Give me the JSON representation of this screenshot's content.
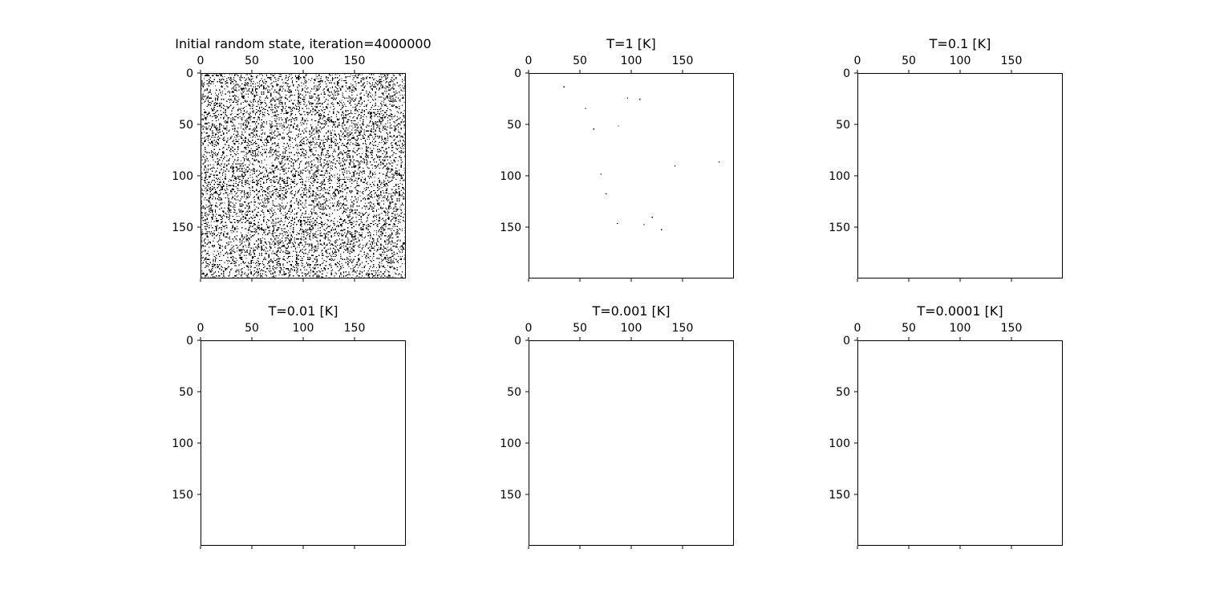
{
  "chart_data": [
    {
      "type": "heatmap",
      "title": "Initial random state, iteration=4000000",
      "xticks": [
        0,
        50,
        100,
        150
      ],
      "yticks": [
        0,
        50,
        100,
        150
      ],
      "grid_size": [
        200,
        200
      ],
      "xlim": [
        0,
        200
      ],
      "ylim": [
        0,
        200
      ],
      "colormap": [
        "#ffffff",
        "#000000"
      ],
      "grid": false,
      "random_fill_fraction": 0.18,
      "points": []
    },
    {
      "type": "heatmap",
      "title": "T=1 [K]",
      "xticks": [
        0,
        50,
        100,
        150
      ],
      "yticks": [
        0,
        50,
        100,
        150
      ],
      "grid_size": [
        200,
        200
      ],
      "xlim": [
        0,
        200
      ],
      "ylim": [
        0,
        200
      ],
      "colormap": [
        "#ffffff",
        "#000000"
      ],
      "grid": false,
      "random_fill_fraction": 0,
      "points": [
        [
          34,
          13
        ],
        [
          96,
          24
        ],
        [
          108,
          25
        ],
        [
          55,
          34
        ],
        [
          63,
          54
        ],
        [
          87,
          51
        ],
        [
          185,
          86
        ],
        [
          142,
          90
        ],
        [
          70,
          98
        ],
        [
          75,
          117
        ],
        [
          120,
          140
        ],
        [
          86,
          146
        ],
        [
          112,
          147
        ],
        [
          129,
          152
        ]
      ]
    },
    {
      "type": "heatmap",
      "title": "T=0.1 [K]",
      "xticks": [
        0,
        50,
        100,
        150
      ],
      "yticks": [
        0,
        50,
        100,
        150
      ],
      "grid_size": [
        200,
        200
      ],
      "xlim": [
        0,
        200
      ],
      "ylim": [
        0,
        200
      ],
      "colormap": [
        "#ffffff",
        "#000000"
      ],
      "grid": false,
      "random_fill_fraction": 0,
      "points": []
    },
    {
      "type": "heatmap",
      "title": "T=0.01 [K]",
      "xticks": [
        0,
        50,
        100,
        150
      ],
      "yticks": [
        0,
        50,
        100,
        150
      ],
      "grid_size": [
        200,
        200
      ],
      "xlim": [
        0,
        200
      ],
      "ylim": [
        0,
        200
      ],
      "colormap": [
        "#ffffff",
        "#000000"
      ],
      "grid": false,
      "random_fill_fraction": 0,
      "points": []
    },
    {
      "type": "heatmap",
      "title": "T=0.001 [K]",
      "xticks": [
        0,
        50,
        100,
        150
      ],
      "yticks": [
        0,
        50,
        100,
        150
      ],
      "grid_size": [
        200,
        200
      ],
      "xlim": [
        0,
        200
      ],
      "ylim": [
        0,
        200
      ],
      "colormap": [
        "#ffffff",
        "#000000"
      ],
      "grid": false,
      "random_fill_fraction": 0,
      "points": []
    },
    {
      "type": "heatmap",
      "title": "T=0.0001 [K]",
      "xticks": [
        0,
        50,
        100,
        150
      ],
      "yticks": [
        0,
        50,
        100,
        150
      ],
      "grid_size": [
        200,
        200
      ],
      "xlim": [
        0,
        200
      ],
      "ylim": [
        0,
        200
      ],
      "colormap": [
        "#ffffff",
        "#000000"
      ],
      "grid": false,
      "random_fill_fraction": 0,
      "points": []
    }
  ]
}
